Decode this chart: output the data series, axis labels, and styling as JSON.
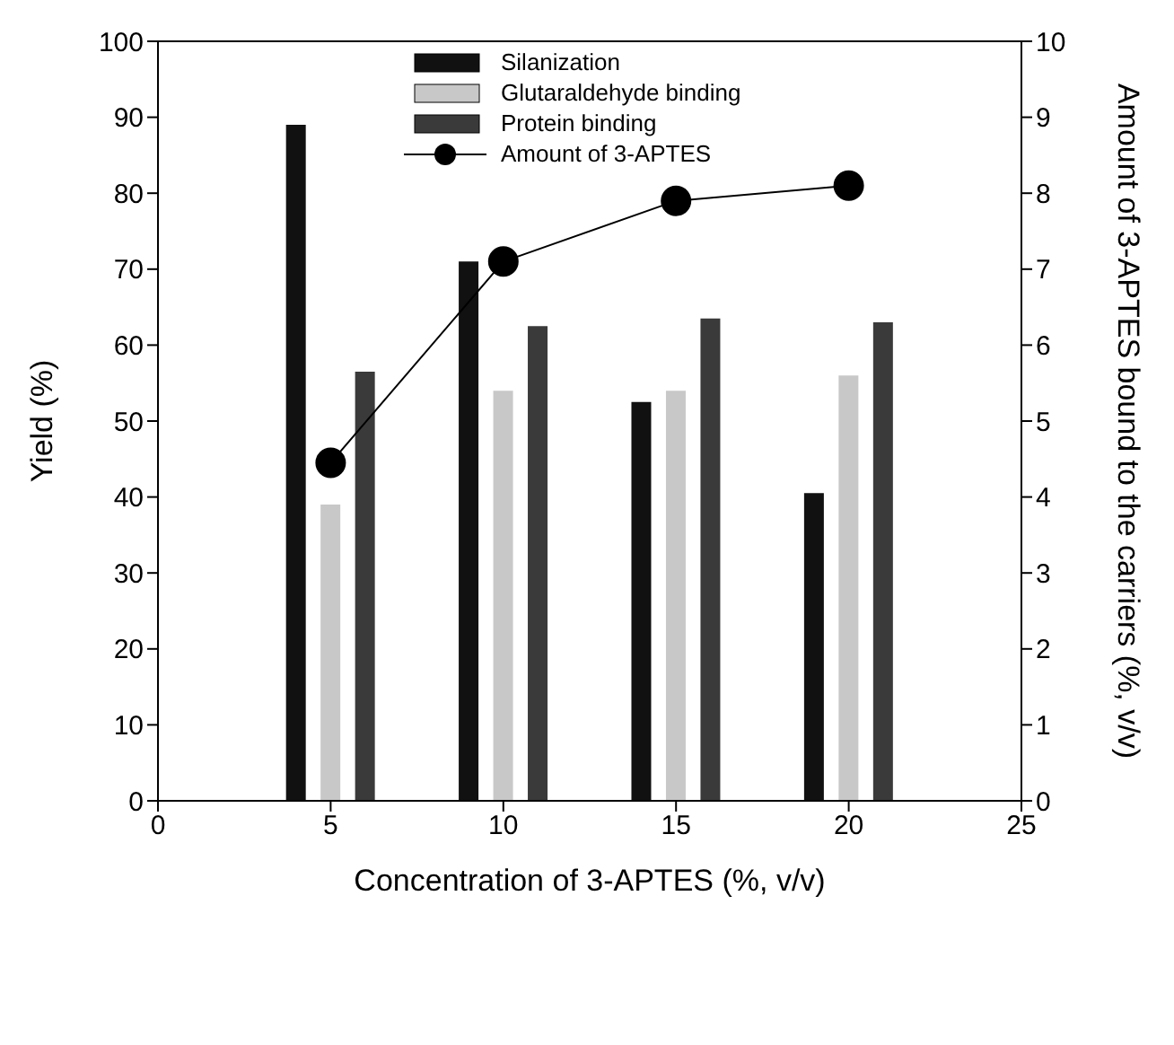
{
  "chart_data": {
    "type": "bar",
    "xlabel": "Concentration of 3-APTES (%, v/v)",
    "ylabel": "Yield (%)",
    "y2label": "Amount of 3-APTES bound to the carriers (%, v/v)",
    "xlim": [
      0,
      25
    ],
    "xticks": [
      0,
      5,
      10,
      15,
      20,
      25
    ],
    "ylim": [
      0,
      100
    ],
    "yticks": [
      0,
      10,
      20,
      30,
      40,
      50,
      60,
      70,
      80,
      90,
      100
    ],
    "y2lim": [
      0,
      10
    ],
    "y2ticks": [
      0,
      1,
      2,
      3,
      4,
      5,
      6,
      7,
      8,
      9,
      10
    ],
    "series": [
      {
        "name": "Silanization",
        "color": "#111111",
        "x": [
          4,
          9,
          14,
          19
        ],
        "values": [
          89,
          71,
          52.5,
          40.5
        ]
      },
      {
        "name": "Glutaraldehyde binding",
        "color": "#c8c8c8",
        "x": [
          5,
          10,
          15,
          20
        ],
        "values": [
          39,
          54,
          54,
          56
        ]
      },
      {
        "name": "Protein binding",
        "color": "#3a3a3a",
        "x": [
          6,
          11,
          16,
          21
        ],
        "values": [
          56.5,
          62.5,
          63.5,
          63
        ]
      },
      {
        "name": "Amount of 3-APTES",
        "type": "line",
        "axis": "y2",
        "color": "#000000",
        "marker": "circle",
        "x": [
          5,
          10,
          15,
          20
        ],
        "values": [
          4.45,
          7.1,
          7.9,
          8.1
        ]
      }
    ],
    "legend": "top",
    "grid": false
  }
}
